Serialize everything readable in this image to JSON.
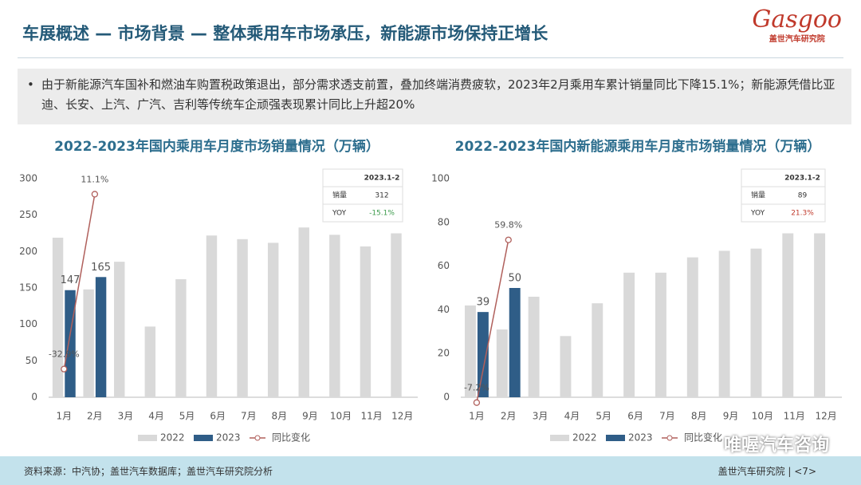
{
  "header": {
    "title": "车展概述 — 市场背景 — 整体乘用车市场承压，新能源市场保持正增长",
    "logo_en": "Gasgoo",
    "logo_cn": "盖世汽车研究院"
  },
  "bullet": "由于新能源汽车国补和燃油车购置税政策退出，部分需求透支前置，叠加终端消费疲软，2023年2月乘用车累计销量同比下降15.1%；新能源凭借比亚迪、长安、上汽、广汽、吉利等传统车企顽强表现累计同比上升超20%",
  "chart_data": [
    {
      "type": "bar",
      "title": "2022-2023年国内乘用车月度市场销量情况（万辆）",
      "categories": [
        "1月",
        "2月",
        "3月",
        "4月",
        "5月",
        "6月",
        "7月",
        "8月",
        "9月",
        "10月",
        "11月",
        "12月"
      ],
      "series": [
        {
          "name": "2022",
          "color": "#d9d9d9",
          "values": [
            219,
            148,
            186,
            97,
            162,
            222,
            217,
            212,
            233,
            223,
            207,
            225
          ]
        },
        {
          "name": "2023",
          "color": "#2f5d87",
          "values": [
            147,
            165,
            null,
            null,
            null,
            null,
            null,
            null,
            null,
            null,
            null,
            null
          ]
        },
        {
          "name": "同比变化",
          "type": "line",
          "axis": "y2",
          "color": "#b0605c",
          "values": [
            -32.9,
            11.1,
            null,
            null,
            null,
            null,
            null,
            null,
            null,
            null,
            null,
            null
          ],
          "value_labels": [
            "-32.9%",
            "11.1%",
            null,
            null,
            null,
            null,
            null,
            null,
            null,
            null,
            null,
            null
          ]
        }
      ],
      "ylim": [
        0,
        300
      ],
      "yticks": [
        0,
        50,
        100,
        150,
        200,
        250,
        300
      ],
      "y2lim": [
        -40,
        15
      ],
      "table": {
        "header": "2023.1-2",
        "rows": [
          [
            "销量",
            "312"
          ],
          [
            "YOY",
            "-15.1%"
          ]
        ],
        "highlight_color": "#3a9a4a"
      }
    },
    {
      "type": "bar",
      "title": "2022-2023年国内新能源乘用车月度市场销量情况（万辆）",
      "categories": [
        "1月",
        "2月",
        "3月",
        "4月",
        "5月",
        "6月",
        "7月",
        "8月",
        "9月",
        "10月",
        "11月",
        "12月"
      ],
      "series": [
        {
          "name": "2022",
          "color": "#d9d9d9",
          "values": [
            42,
            31,
            46,
            28,
            43,
            57,
            57,
            64,
            67,
            68,
            75,
            75
          ]
        },
        {
          "name": "2023",
          "color": "#2f5d87",
          "values": [
            39,
            50,
            null,
            null,
            null,
            null,
            null,
            null,
            null,
            null,
            null,
            null
          ]
        },
        {
          "name": "同比变化",
          "type": "line",
          "axis": "y2",
          "color": "#b0605c",
          "values": [
            -7.2,
            59.8,
            null,
            null,
            null,
            null,
            null,
            null,
            null,
            null,
            null,
            null
          ],
          "value_labels": [
            "-7.2%",
            "59.8%",
            null,
            null,
            null,
            null,
            null,
            null,
            null,
            null,
            null,
            null
          ]
        }
      ],
      "ylim": [
        0,
        100
      ],
      "yticks": [
        0,
        20,
        40,
        60,
        80,
        100
      ],
      "y2lim": [
        -5,
        85
      ],
      "table": {
        "header": "2023.1-2",
        "rows": [
          [
            "销量",
            "89"
          ],
          [
            "YOY",
            "21.3%"
          ]
        ],
        "highlight_color": "#c0392b"
      }
    }
  ],
  "footer": {
    "source": "资料来源：中汽协；盖世汽车数据库；盖世汽车研究院分析",
    "page": "盖世汽车研究院 | <7>"
  },
  "watermark": "唯喔汽车咨询"
}
